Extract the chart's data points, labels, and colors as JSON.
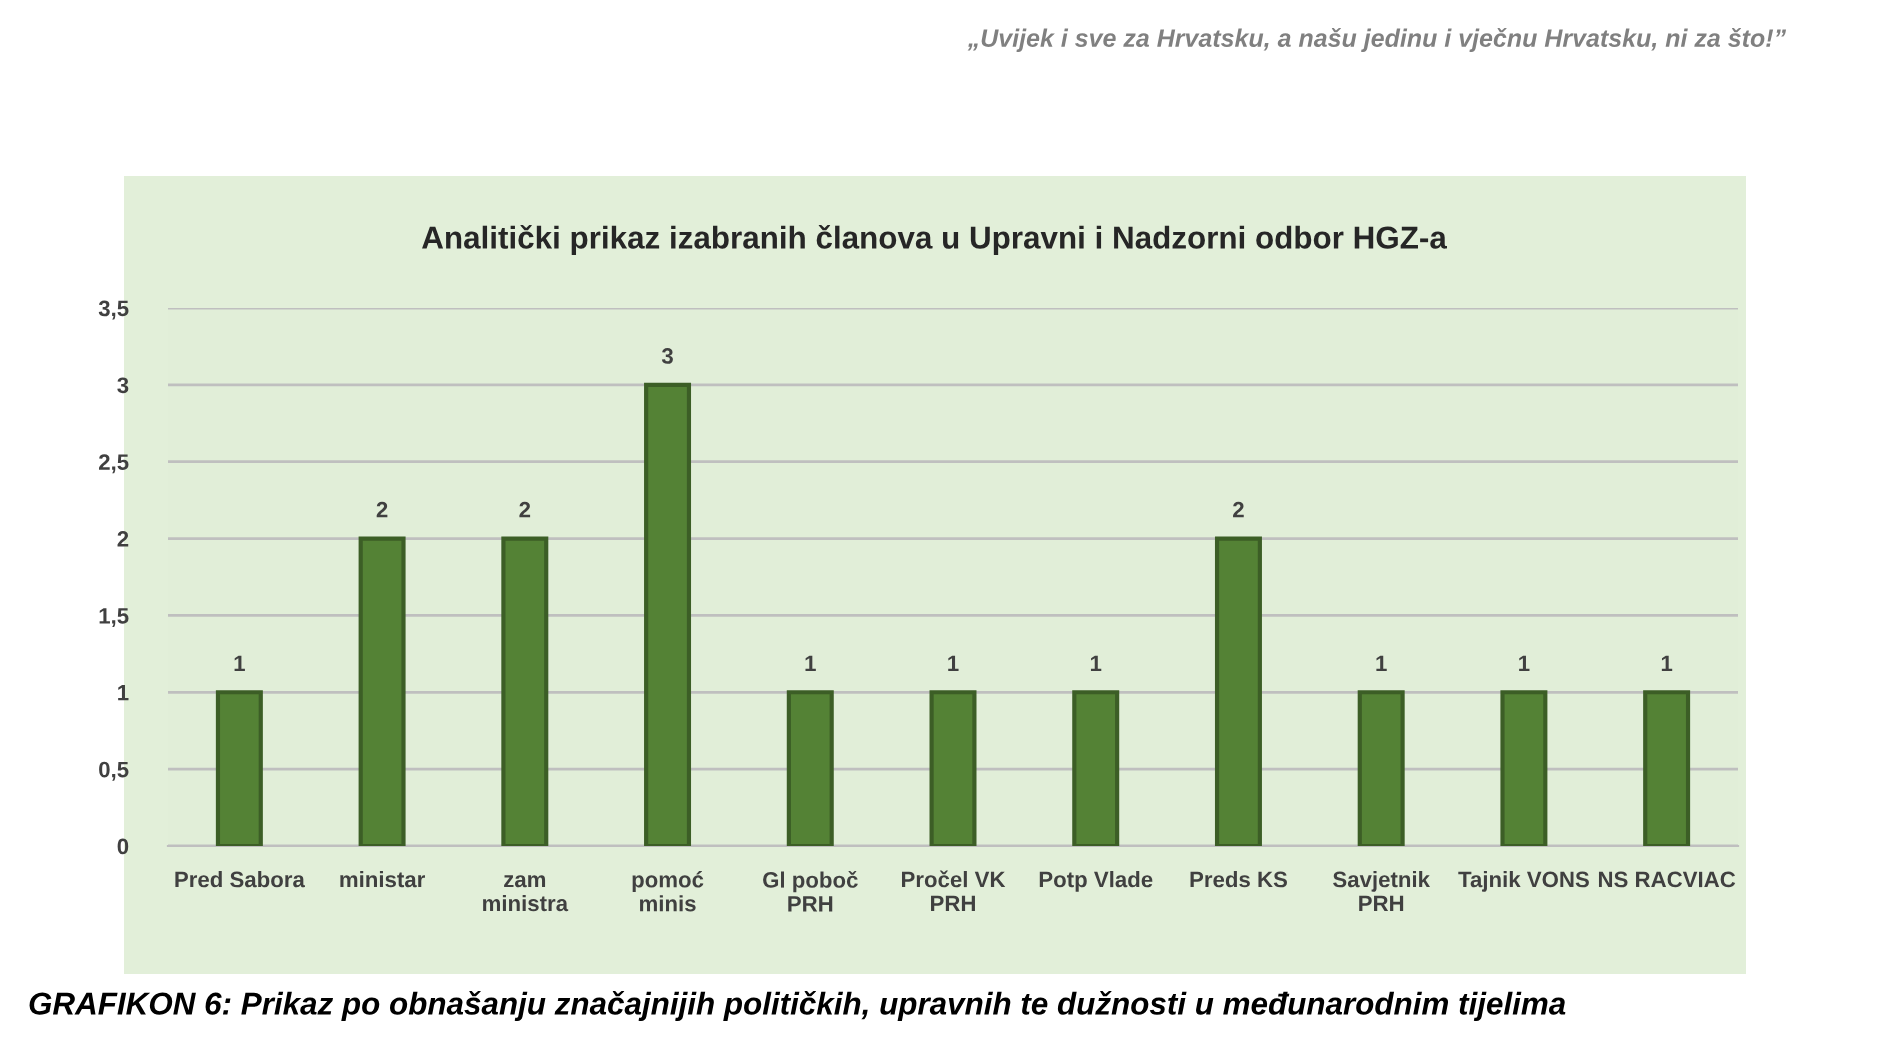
{
  "chart_data": {
    "type": "bar",
    "title": "Analitički prikaz izabranih članova u Upravni i Nadzorni odbor HGZ-a",
    "categories": [
      "Pred Sabora",
      "ministar",
      "zam\nministra",
      "pomoć\nminis",
      "Gl poboč\nPRH",
      "Pročel VK\nPRH",
      "Potp Vlade",
      "Preds KS",
      "Savjetnik\nPRH",
      "Tajnik VONS",
      "NS RACVIAC"
    ],
    "values": [
      1,
      2,
      2,
      3,
      1,
      1,
      1,
      2,
      1,
      1,
      1
    ],
    "color": "#548235",
    "ylim": [
      0,
      3.5
    ],
    "yticks": [
      0,
      {
        "value": 0.5,
        "label": "0,5"
      },
      1,
      {
        "value": 1.5,
        "label": "1,5"
      },
      2,
      {
        "value": 2.5,
        "label": "2,5"
      },
      3,
      {
        "value": 3.5,
        "label": "3,5"
      }
    ],
    "grid": "y",
    "data_labels": true,
    "annotations": [
      "„Uvijek i sve za Hrvatsku, a našu jedinu i vječnu Hrvatsku, ni za što!”",
      "GRAFIKON 6: Prikaz po obnašanju značajnijih političkih, upravnih te dužnosti u međunarodnim tijelima"
    ]
  }
}
